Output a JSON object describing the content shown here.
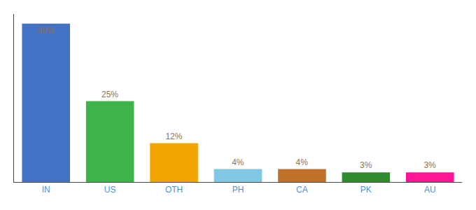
{
  "chart_data": {
    "type": "bar",
    "categories": [
      "IN",
      "US",
      "OTH",
      "PH",
      "CA",
      "PK",
      "AU"
    ],
    "values": [
      49,
      25,
      12,
      4,
      4,
      3,
      3
    ],
    "value_labels": [
      "49%",
      "25%",
      "12%",
      "4%",
      "4%",
      "3%",
      "3%"
    ],
    "colors": [
      "#4472c4",
      "#3db34a",
      "#f0a500",
      "#7ec8e3",
      "#c07028",
      "#2e8b2e",
      "#ff1493"
    ],
    "ylim": [
      0,
      52
    ],
    "grid": false,
    "data_labels": true,
    "tick_labels": "x"
  }
}
